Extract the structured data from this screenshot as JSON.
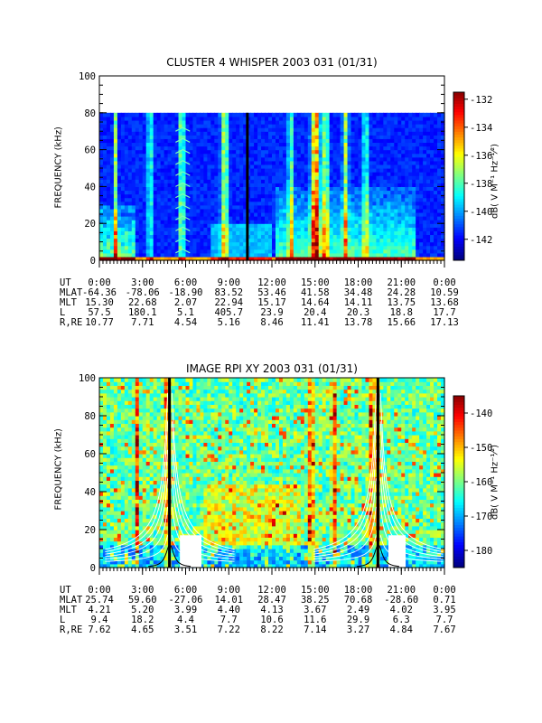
{
  "chart_data": [
    {
      "type": "heatmap",
      "title": "CLUSTER 4 WHISPER 2003 031 (01/31)",
      "ylabel": "FREQUENCY (kHz)",
      "ylim": [
        0,
        100
      ],
      "yticks": [
        0,
        20,
        40,
        60,
        80,
        100
      ],
      "data_top_khz": 80,
      "xlim_hours": [
        0,
        24
      ],
      "xticks": [
        "0:00",
        "3:00",
        "6:00",
        "9:00",
        "12:00",
        "15:00",
        "18:00",
        "21:00",
        "0:00"
      ],
      "colorbar": {
        "label": "dB( V M⁻¹ Hz⁻¹⁄²)",
        "range": [
          -143.5,
          -131.5
        ],
        "ticks": [
          -132,
          -134,
          -136,
          -138,
          -140,
          -142
        ]
      },
      "ephemeris": [
        {
          "name": "UT",
          "values": [
            "0:00",
            "3:00",
            "6:00",
            "9:00",
            "12:00",
            "15:00",
            "18:00",
            "21:00",
            "0:00"
          ]
        },
        {
          "name": "MLAT",
          "values": [
            "-64.36",
            "-78.06",
            "-18.90",
            "83.52",
            "53.46",
            "41.58",
            "34.48",
            "24.28",
            "10.59"
          ]
        },
        {
          "name": "MLT",
          "values": [
            "15.30",
            "22.68",
            "2.07",
            "22.94",
            "15.17",
            "14.64",
            "14.11",
            "13.75",
            "13.68"
          ]
        },
        {
          "name": "L",
          "values": [
            "57.5",
            "180.1",
            "5.1",
            "405.7",
            "23.9",
            "20.4",
            "20.3",
            "18.8",
            "17.7"
          ]
        },
        {
          "name": "R,RE",
          "values": [
            "10.77",
            "7.71",
            "4.54",
            "5.16",
            "8.46",
            "11.41",
            "13.78",
            "15.66",
            "17.13"
          ]
        }
      ]
    },
    {
      "type": "heatmap",
      "title": "IMAGE RPI XY 2003 031 (01/31)",
      "ylabel": "FREQUENCY (kHz)",
      "ylim": [
        0,
        100
      ],
      "yticks": [
        0,
        20,
        40,
        60,
        80,
        100
      ],
      "xlim_hours": [
        0,
        24
      ],
      "xticks": [
        "0:00",
        "3:00",
        "6:00",
        "9:00",
        "12:00",
        "15:00",
        "18:00",
        "21:00",
        "0:00"
      ],
      "colorbar": {
        "label": "dB( V M⁻¹ Hz⁻¹⁄²)",
        "range": [
          -185,
          -135
        ],
        "ticks": [
          -140,
          -150,
          -160,
          -170,
          -180
        ]
      },
      "ephemeris": [
        {
          "name": "UT",
          "values": [
            "0:00",
            "3:00",
            "6:00",
            "9:00",
            "12:00",
            "15:00",
            "18:00",
            "21:00",
            "0:00"
          ]
        },
        {
          "name": "MLAT",
          "values": [
            "25.74",
            "59.60",
            "-27.06",
            "14.01",
            "28.47",
            "38.25",
            "70.68",
            "-28.60",
            "0.71"
          ]
        },
        {
          "name": "MLT",
          "values": [
            "4.21",
            "5.20",
            "3.99",
            "4.40",
            "4.13",
            "3.67",
            "2.49",
            "4.02",
            "3.95"
          ]
        },
        {
          "name": "L",
          "values": [
            "9.4",
            "18.2",
            "4.4",
            "7.7",
            "10.6",
            "11.6",
            "29.9",
            "6.3",
            "7.7"
          ]
        },
        {
          "name": "R,RE",
          "values": [
            "7.62",
            "4.65",
            "3.51",
            "7.22",
            "8.22",
            "7.14",
            "3.27",
            "4.84",
            "7.67"
          ]
        }
      ]
    }
  ]
}
